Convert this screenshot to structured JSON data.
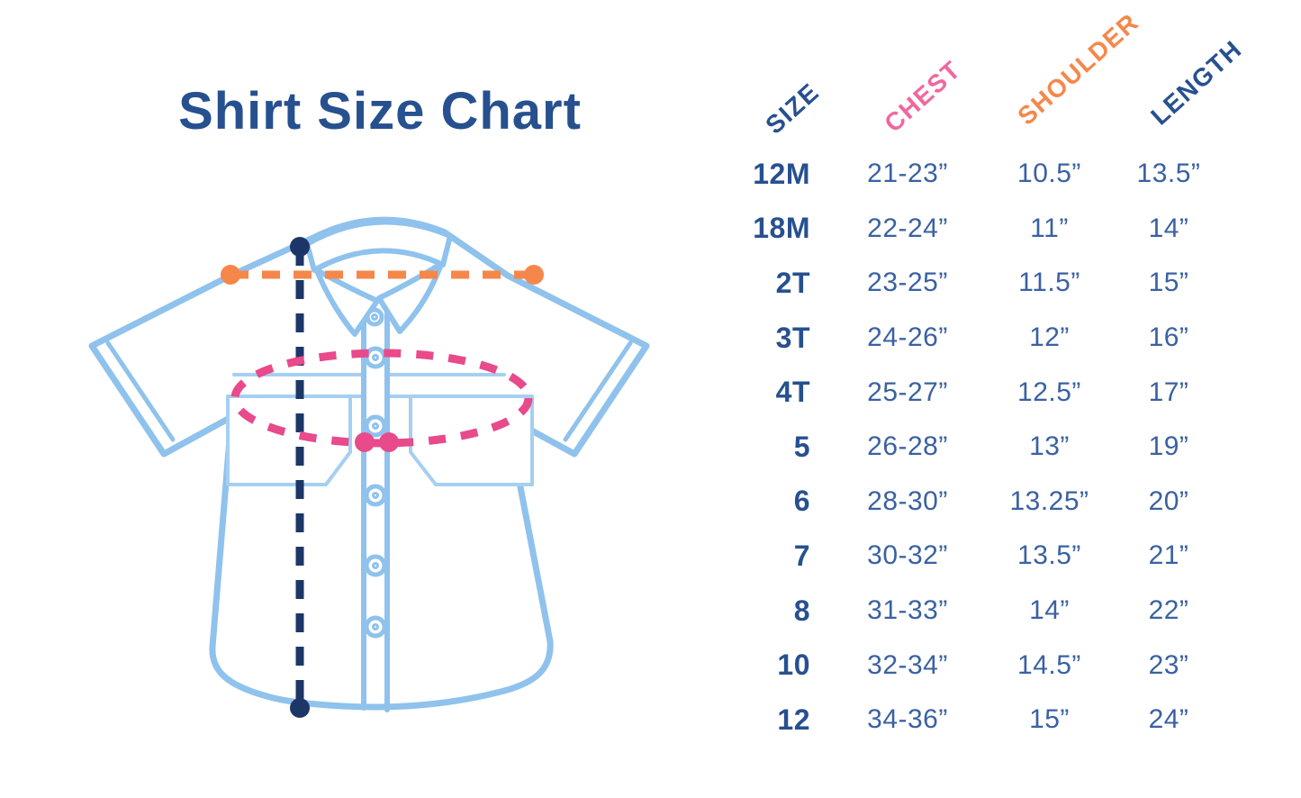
{
  "title": "Shirt Size Chart",
  "colors": {
    "navy": "#27508F",
    "navy_dark": "#1C3767",
    "value_blue": "#3A61A2",
    "pink_header": "#F0679E",
    "pink_line": "#E84A8B",
    "orange": "#F6874A",
    "shirt_blue": "#8FC2EC",
    "background": "#FFFFFF"
  },
  "diagram": {
    "shirt_icon": "short-sleeve-button-up-shirt",
    "shoulder_line_color": "#F6874A",
    "chest_line_color": "#E84A8B",
    "length_line_color": "#1C3767",
    "shirt_outline_color": "#8FC2EC"
  },
  "table": {
    "columns": [
      {
        "key": "size",
        "label": "SIZE",
        "color": "#27508F"
      },
      {
        "key": "chest",
        "label": "CHEST",
        "color": "#F0679E"
      },
      {
        "key": "shoulder",
        "label": "SHOULDER",
        "color": "#F6874A"
      },
      {
        "key": "length",
        "label": "LENGTH",
        "color": "#27508F"
      }
    ],
    "rows": [
      {
        "size": "12M",
        "chest": "21-23”",
        "shoulder": "10.5”",
        "length": "13.5”"
      },
      {
        "size": "18M",
        "chest": "22-24”",
        "shoulder": "11”",
        "length": "14”"
      },
      {
        "size": "2T",
        "chest": "23-25”",
        "shoulder": "11.5”",
        "length": "15”"
      },
      {
        "size": "3T",
        "chest": "24-26”",
        "shoulder": "12”",
        "length": "16”"
      },
      {
        "size": "4T",
        "chest": "25-27”",
        "shoulder": "12.5”",
        "length": "17”"
      },
      {
        "size": "5",
        "chest": "26-28”",
        "shoulder": "13”",
        "length": "19”"
      },
      {
        "size": "6",
        "chest": "28-30”",
        "shoulder": "13.25”",
        "length": "20”"
      },
      {
        "size": "7",
        "chest": "30-32”",
        "shoulder": "13.5”",
        "length": "21”"
      },
      {
        "size": "8",
        "chest": "31-33”",
        "shoulder": "14”",
        "length": "22”"
      },
      {
        "size": "10",
        "chest": "32-34”",
        "shoulder": "14.5”",
        "length": "23”"
      },
      {
        "size": "12",
        "chest": "34-36”",
        "shoulder": "15”",
        "length": "24”"
      }
    ]
  },
  "chart_data": {
    "type": "table",
    "title": "Shirt Size Chart",
    "columns": [
      "Size",
      "Chest",
      "Shoulder",
      "Length"
    ],
    "units": "inches",
    "rows": [
      [
        "12M",
        "21-23",
        "10.5",
        "13.5"
      ],
      [
        "18M",
        "22-24",
        "11",
        "14"
      ],
      [
        "2T",
        "23-25",
        "11.5",
        "15"
      ],
      [
        "3T",
        "24-26",
        "12",
        "16"
      ],
      [
        "4T",
        "25-27",
        "12.5",
        "17"
      ],
      [
        "5",
        "26-28",
        "13",
        "19"
      ],
      [
        "6",
        "28-30",
        "13.25",
        "20"
      ],
      [
        "7",
        "30-32",
        "13.5",
        "21"
      ],
      [
        "8",
        "31-33",
        "14",
        "22"
      ],
      [
        "10",
        "32-34",
        "14.5",
        "23"
      ],
      [
        "12",
        "34-36",
        "15",
        "24"
      ]
    ]
  }
}
